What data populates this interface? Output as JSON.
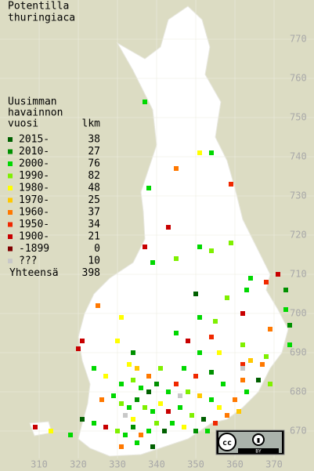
{
  "title": [
    "Potentilla",
    "thuringiaca"
  ],
  "legend": {
    "heading": [
      "Uusimman",
      "havainnon",
      "vuosi"
    ],
    "count_heading": "lkm",
    "rows": [
      {
        "label": "2015-",
        "count": 38,
        "color": "#006000"
      },
      {
        "label": "2010-",
        "count": 27,
        "color": "#009000"
      },
      {
        "label": "2000-",
        "count": 76,
        "color": "#00d800"
      },
      {
        "label": "1990-",
        "count": 82,
        "color": "#7ff000"
      },
      {
        "label": "1980-",
        "count": 48,
        "color": "#ffff00"
      },
      {
        "label": "1970-",
        "count": 25,
        "color": "#ffc800"
      },
      {
        "label": "1960-",
        "count": 37,
        "color": "#ff7800"
      },
      {
        "label": "1950-",
        "count": 34,
        "color": "#f02800"
      },
      {
        "label": "1900-",
        "count": 21,
        "color": "#c80000"
      },
      {
        "label": "-1899",
        "count": 0,
        "color": "#800000"
      },
      {
        "label": "???",
        "count": 10,
        "color": "#c8c8c8"
      }
    ],
    "total_label": "Yhteensä",
    "total": 398
  },
  "northing_ticks": [
    770,
    760,
    750,
    740,
    730,
    720,
    710,
    700,
    690,
    680,
    670
  ],
  "easting_ticks": [
    310,
    320,
    330,
    340,
    350,
    360,
    370
  ],
  "points": [
    [
      337,
      754,
      2
    ],
    [
      345,
      737,
      6
    ],
    [
      351,
      741,
      4
    ],
    [
      354,
      741,
      2
    ],
    [
      338,
      732,
      2
    ],
    [
      359,
      733,
      7
    ],
    [
      343,
      722,
      8
    ],
    [
      337,
      717,
      8
    ],
    [
      351,
      717,
      2
    ],
    [
      354,
      716,
      3
    ],
    [
      359,
      718,
      3
    ],
    [
      339,
      713,
      2
    ],
    [
      345,
      714,
      3
    ],
    [
      364,
      709,
      2
    ],
    [
      371,
      710,
      8
    ],
    [
      350,
      705,
      0
    ],
    [
      363,
      706,
      2
    ],
    [
      358,
      704,
      3
    ],
    [
      368,
      708,
      7
    ],
    [
      373,
      706,
      1
    ],
    [
      325,
      702,
      6
    ],
    [
      331,
      699,
      4
    ],
    [
      351,
      699,
      2
    ],
    [
      355,
      698,
      3
    ],
    [
      362,
      700,
      8
    ],
    [
      373,
      701,
      2
    ],
    [
      369,
      696,
      6
    ],
    [
      374,
      697,
      1
    ],
    [
      330,
      693,
      4
    ],
    [
      345,
      695,
      2
    ],
    [
      348,
      693,
      8
    ],
    [
      354,
      694,
      7
    ],
    [
      362,
      692,
      3
    ],
    [
      374,
      692,
      2
    ],
    [
      321,
      693,
      8
    ],
    [
      320,
      691,
      8
    ],
    [
      334,
      690,
      1
    ],
    [
      351,
      690,
      2
    ],
    [
      356,
      690,
      4
    ],
    [
      362,
      687,
      7
    ],
    [
      364,
      688,
      5
    ],
    [
      367,
      687,
      6
    ],
    [
      368,
      689,
      3
    ],
    [
      324,
      686,
      2
    ],
    [
      333,
      687,
      4
    ],
    [
      335,
      686,
      5
    ],
    [
      338,
      684,
      6
    ],
    [
      341,
      686,
      3
    ],
    [
      347,
      686,
      2
    ],
    [
      350,
      684,
      7
    ],
    [
      354,
      685,
      1
    ],
    [
      357,
      682,
      2
    ],
    [
      362,
      683,
      6
    ],
    [
      366,
      683,
      0
    ],
    [
      369,
      682,
      3
    ],
    [
      327,
      684,
      4
    ],
    [
      331,
      682,
      2
    ],
    [
      334,
      683,
      3
    ],
    [
      336,
      681,
      2
    ],
    [
      338,
      680,
      0
    ],
    [
      340,
      682,
      1
    ],
    [
      343,
      680,
      2
    ],
    [
      345,
      682,
      7
    ],
    [
      348,
      680,
      3
    ],
    [
      351,
      679,
      5
    ],
    [
      354,
      678,
      2
    ],
    [
      356,
      676,
      4
    ],
    [
      360,
      678,
      6
    ],
    [
      363,
      680,
      2
    ],
    [
      326,
      678,
      6
    ],
    [
      329,
      679,
      2
    ],
    [
      331,
      677,
      3
    ],
    [
      333,
      676,
      2
    ],
    [
      335,
      678,
      1
    ],
    [
      337,
      676,
      3
    ],
    [
      339,
      675,
      2
    ],
    [
      341,
      677,
      4
    ],
    [
      343,
      675,
      8
    ],
    [
      346,
      676,
      2
    ],
    [
      349,
      674,
      3
    ],
    [
      352,
      673,
      0
    ],
    [
      355,
      672,
      7
    ],
    [
      358,
      674,
      6
    ],
    [
      361,
      675,
      5
    ],
    [
      321,
      673,
      0
    ],
    [
      324,
      672,
      2
    ],
    [
      327,
      671,
      8
    ],
    [
      330,
      670,
      3
    ],
    [
      332,
      669,
      2
    ],
    [
      334,
      671,
      1
    ],
    [
      336,
      669,
      6
    ],
    [
      338,
      670,
      2
    ],
    [
      340,
      672,
      3
    ],
    [
      342,
      670,
      0
    ],
    [
      344,
      672,
      2
    ],
    [
      347,
      671,
      4
    ],
    [
      350,
      670,
      1
    ],
    [
      353,
      670,
      2
    ],
    [
      356,
      669,
      7
    ],
    [
      309,
      671,
      8
    ],
    [
      313,
      670,
      4
    ],
    [
      318,
      669,
      2
    ],
    [
      331,
      666,
      6
    ],
    [
      335,
      667,
      2
    ],
    [
      339,
      666,
      0
    ],
    [
      334,
      673,
      4
    ],
    [
      332,
      674,
      10
    ],
    [
      346,
      679,
      10
    ],
    [
      362,
      686,
      10
    ]
  ]
}
